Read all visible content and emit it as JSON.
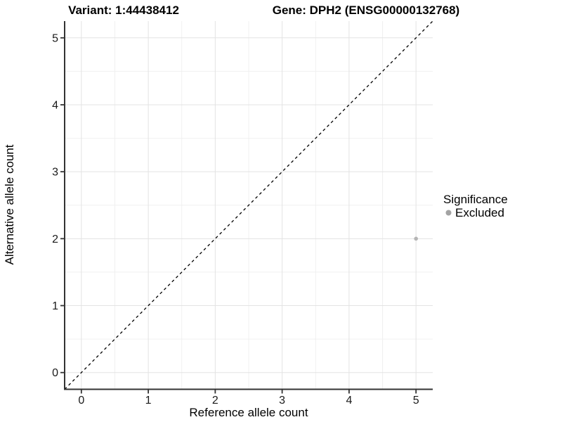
{
  "chart_data": {
    "type": "scatter",
    "title_left": "Variant: 1:44438412",
    "title_right": "Gene: DPH2 (ENSG00000132768)",
    "xlabel": "Reference allele count",
    "ylabel": "Alternative allele count",
    "xlim": [
      -0.25,
      5.25
    ],
    "ylim": [
      -0.25,
      5.25
    ],
    "x_ticks": [
      0,
      1,
      2,
      3,
      4,
      5
    ],
    "y_ticks": [
      0,
      1,
      2,
      3,
      4,
      5
    ],
    "grid": {
      "major": true,
      "minor": true
    },
    "series": [
      {
        "name": "Excluded",
        "color": "#b5b5b5",
        "points": [
          {
            "x": 5,
            "y": 2
          }
        ]
      }
    ],
    "reference_line": {
      "kind": "identity",
      "equation": "y = x",
      "style": "dashed",
      "color": "#000000"
    },
    "legend": {
      "title": "Significance",
      "position": "right",
      "entries": [
        {
          "label": "Excluded",
          "color": "#a3a3a3"
        }
      ]
    }
  },
  "colors": {
    "background": "#ffffff",
    "grid_major": "#e3e3e3",
    "grid_minor": "#f0f0f0",
    "axis_line": "#333333",
    "tick_mark": "#333333"
  }
}
